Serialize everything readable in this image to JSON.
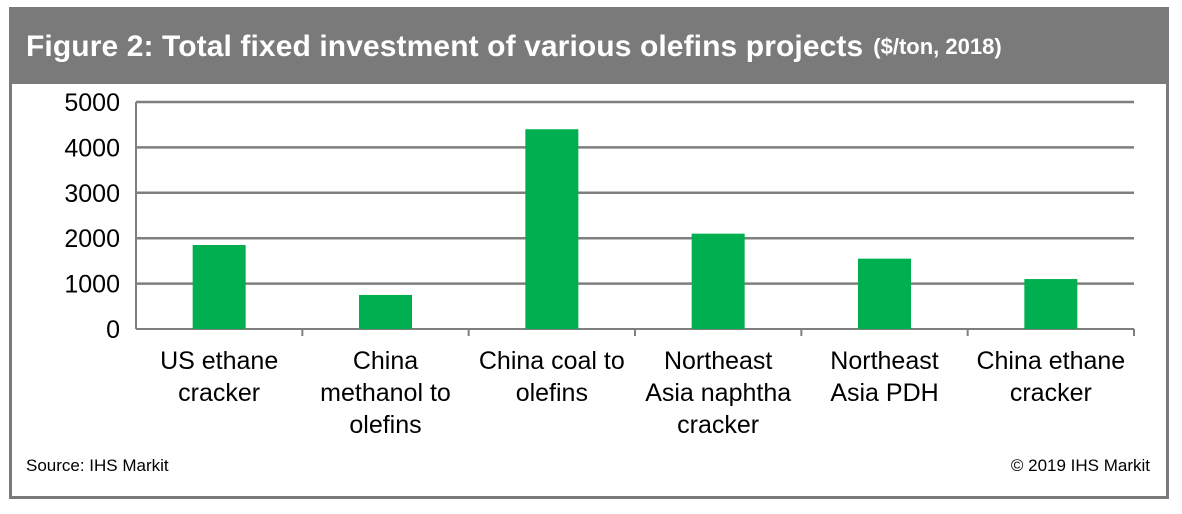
{
  "header": {
    "title": "Figure 2: Total fixed investment of various olefins projects",
    "subtitle": "($/ton, 2018)"
  },
  "footer": {
    "source": "Source: IHS Markit",
    "copyright": "© 2019 IHS Markit"
  },
  "colors": {
    "bar": "#00b050",
    "frame": "#7a7a7a",
    "gridline": "#7f7f7f"
  },
  "chart_data": {
    "type": "bar",
    "title": "Figure 2: Total fixed investment of various olefins projects ($/ton, 2018)",
    "categories": [
      [
        "US ethane",
        "cracker"
      ],
      [
        "China",
        "methanol to",
        "olefins"
      ],
      [
        "China coal to",
        "olefins"
      ],
      [
        "Northeast",
        "Asia naphtha",
        "cracker"
      ],
      [
        "Northeast",
        "Asia PDH"
      ],
      [
        "China ethane",
        "cracker"
      ]
    ],
    "values": [
      1850,
      750,
      4400,
      2100,
      1550,
      1100
    ],
    "ylim": [
      0,
      5000
    ],
    "yticks": [
      0,
      1000,
      2000,
      3000,
      4000,
      5000
    ],
    "grid": true,
    "legend": "none"
  }
}
